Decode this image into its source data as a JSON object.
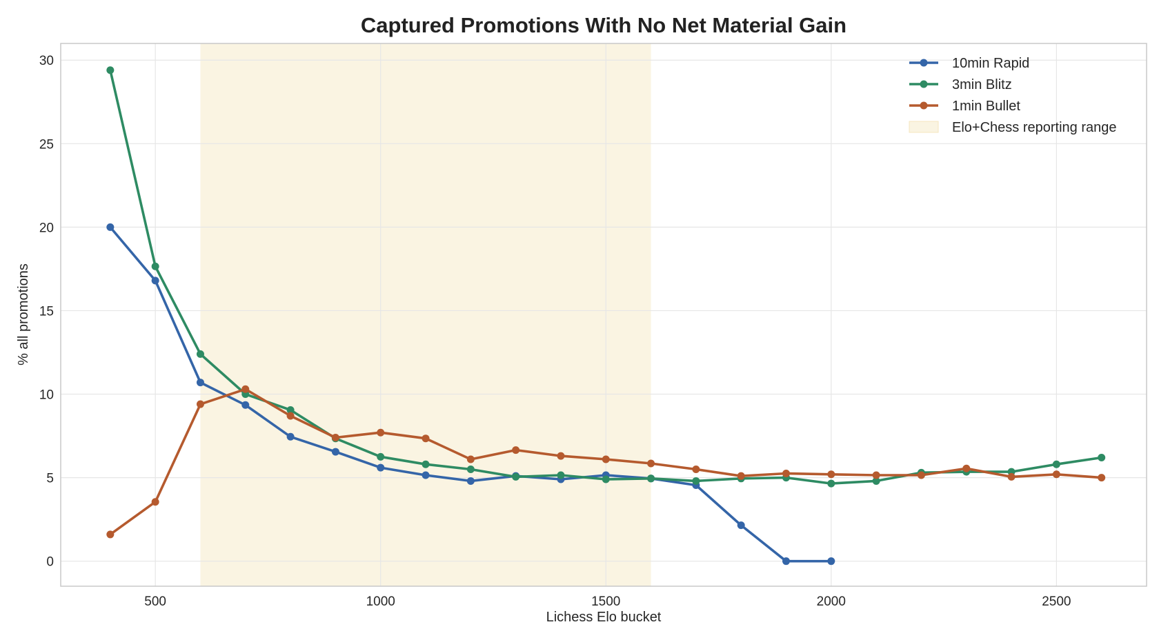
{
  "chart_data": {
    "type": "line",
    "title": "Captured Promotions With No Net Material Gain",
    "xlabel": "Lichess Elo bucket",
    "ylabel": "% all promotions",
    "xlim": [
      290,
      2700
    ],
    "ylim": [
      -1.5,
      31
    ],
    "xticks": [
      500,
      1000,
      1500,
      2000,
      2500
    ],
    "yticks": [
      0,
      5,
      10,
      15,
      20,
      25,
      30
    ],
    "grid": true,
    "legend_position": "top-right",
    "shaded_region": {
      "label": "Elo+Chess reporting range",
      "x": [
        600,
        1600
      ],
      "color": "#f5e6bf"
    },
    "series": [
      {
        "name": "10min Rapid",
        "color": "#3465a8",
        "x": [
          400,
          500,
          600,
          700,
          800,
          900,
          1000,
          1100,
          1200,
          1300,
          1400,
          1500,
          1600,
          1700,
          1800,
          1900,
          2000
        ],
        "values": [
          20.0,
          16.8,
          10.7,
          9.35,
          7.45,
          6.55,
          5.6,
          5.15,
          4.8,
          5.1,
          4.9,
          5.15,
          4.95,
          4.55,
          2.15,
          0.0,
          0.0
        ]
      },
      {
        "name": "3min Blitz",
        "color": "#2e8b63",
        "x": [
          400,
          500,
          600,
          700,
          800,
          900,
          1000,
          1100,
          1200,
          1300,
          1400,
          1500,
          1600,
          1700,
          1800,
          1900,
          2000,
          2100,
          2200,
          2300,
          2400,
          2500,
          2600
        ],
        "values": [
          29.4,
          17.65,
          12.4,
          10.0,
          9.05,
          7.35,
          6.25,
          5.8,
          5.5,
          5.05,
          5.15,
          4.9,
          4.95,
          4.8,
          4.95,
          5.0,
          4.65,
          4.8,
          5.3,
          5.35,
          5.35,
          5.8,
          6.2
        ]
      },
      {
        "name": "1min Bullet",
        "color": "#b55a2e",
        "x": [
          400,
          500,
          600,
          700,
          800,
          900,
          1000,
          1100,
          1200,
          1300,
          1400,
          1500,
          1600,
          1700,
          1800,
          1900,
          2000,
          2100,
          2200,
          2300,
          2400,
          2500,
          2600
        ],
        "values": [
          1.6,
          3.55,
          9.4,
          10.3,
          8.7,
          7.4,
          7.7,
          7.35,
          6.1,
          6.65,
          6.3,
          6.1,
          5.85,
          5.5,
          5.1,
          5.25,
          5.2,
          5.15,
          5.15,
          5.55,
          5.05,
          5.2,
          5.0
        ]
      }
    ]
  }
}
